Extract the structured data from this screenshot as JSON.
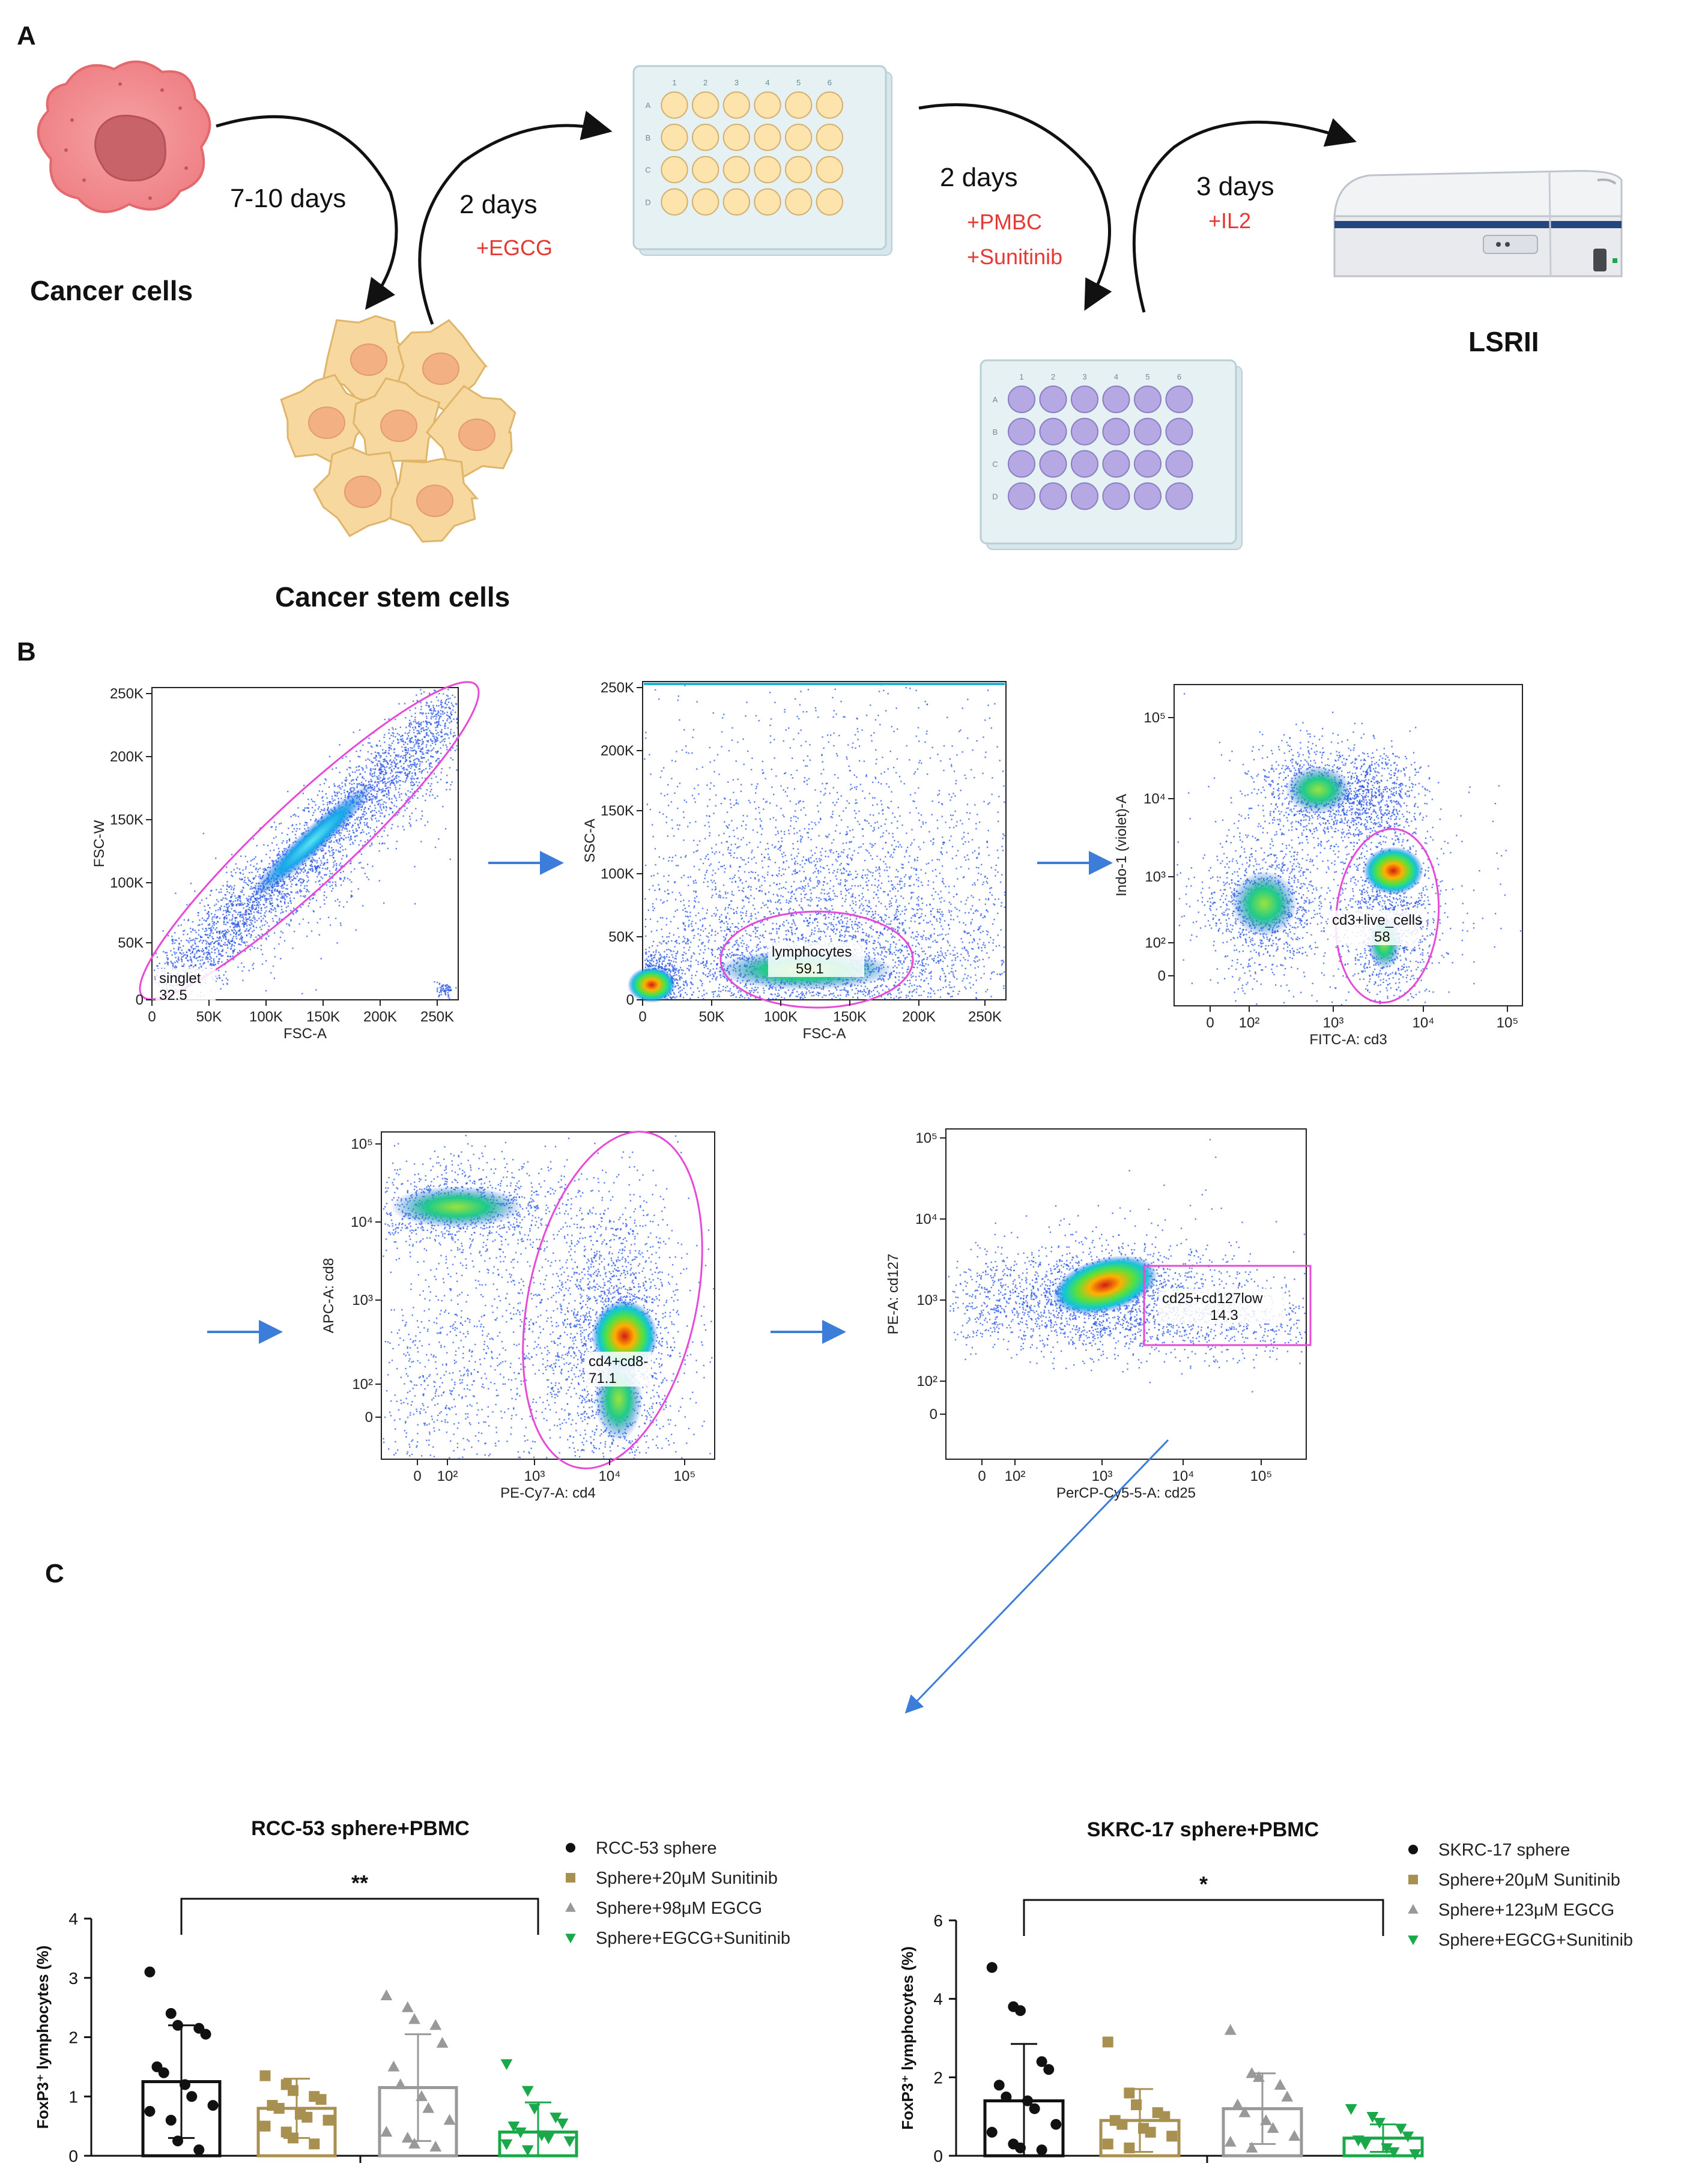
{
  "panels": {
    "a": "A",
    "b": "B",
    "c": "C"
  },
  "schematic": {
    "cancer_cells": "Cancer cells",
    "cancer_stem_cells": "Cancer stem cells",
    "instrument": "LSRII",
    "step1": {
      "duration": "7-10 days"
    },
    "step2": {
      "duration": "2 days",
      "treatment": "+EGCG"
    },
    "step3": {
      "duration": "2 days",
      "treatment1": "+PMBC",
      "treatment2": "+Sunitinib"
    },
    "step4": {
      "duration": "3 days",
      "treatment": "+IL2"
    },
    "plate_cols": [
      "1",
      "2",
      "3",
      "4",
      "5",
      "6"
    ],
    "plate_rows": [
      "A",
      "B",
      "C",
      "D"
    ],
    "colors": {
      "cancer": "#f08a8e",
      "stem": "#f7d9a0",
      "plate1_well": "#fde4ad",
      "plate2_well": "#b6a9e3",
      "red_text": "#e53935"
    }
  },
  "flow": {
    "plot1": {
      "xlabel": "FSC-A",
      "ylabel": "FSC-W",
      "xticks": [
        "0",
        "50K",
        "100K",
        "150K",
        "200K",
        "250K"
      ],
      "yticks": [
        "0",
        "50K",
        "100K",
        "150K",
        "200K",
        "250K"
      ],
      "gate_name": "singlet",
      "gate_value": "32.5"
    },
    "plot2": {
      "xlabel": "FSC-A",
      "ylabel": "SSC-A",
      "xticks": [
        "0",
        "50K",
        "100K",
        "150K",
        "200K",
        "250K"
      ],
      "yticks": [
        "0",
        "50K",
        "100K",
        "150K",
        "200K",
        "250K"
      ],
      "gate_name": "lymphocytes",
      "gate_value": "59.1"
    },
    "plot3": {
      "xlabel": "FITC-A: cd3",
      "ylabel": "Indo-1 (violet)-A",
      "xticks": [
        "0",
        "10²",
        "10³",
        "10⁴",
        "10⁵"
      ],
      "yticks": [
        "0",
        "10²",
        "10³",
        "10⁴",
        "10⁵"
      ],
      "gate_name": "cd3+live_cells",
      "gate_value": "58"
    },
    "plot4": {
      "xlabel": "PE-Cy7-A: cd4",
      "ylabel": "APC-A: cd8",
      "xticks": [
        "0",
        "10²",
        "10³",
        "10⁴",
        "10⁵"
      ],
      "yticks": [
        "0",
        "10²",
        "10³",
        "10⁴",
        "10⁵"
      ],
      "gate_name": "cd4+cd8-",
      "gate_value": "71.1"
    },
    "plot5": {
      "xlabel": "PerCP-Cy5-5-A: cd25",
      "ylabel": "PE-A: cd127",
      "xticks": [
        "0",
        "10²",
        "10³",
        "10⁴",
        "10⁵"
      ],
      "yticks": [
        "0",
        "10²",
        "10³",
        "10⁴",
        "10⁵"
      ],
      "gate_name": "cd25+cd127low",
      "gate_value": "14.3"
    }
  },
  "chart_data": [
    {
      "type": "bar",
      "title": "RCC-53 sphere+PBMC",
      "ylabel": "FoxP3⁺ lymphocytes (%)",
      "ylim": [
        0,
        4
      ],
      "yticks": [
        "0",
        "1",
        "2",
        "3",
        "4"
      ],
      "categories": [
        "RCC-53 sphere",
        "Sphere+20μM Sunitinib",
        "Sphere+98μM EGCG",
        "Sphere+EGCG+Sunitinib"
      ],
      "values": [
        1.25,
        0.8,
        1.15,
        0.4
      ],
      "errors": [
        0.95,
        0.5,
        0.9,
        0.5
      ],
      "colors": [
        "#111111",
        "#a89050",
        "#999999",
        "#1aa84a"
      ],
      "markers": [
        "circle",
        "square",
        "triangle-up",
        "triangle-down"
      ],
      "points": [
        [
          3.1,
          2.4,
          2.2,
          2.15,
          2.05,
          1.5,
          1.4,
          1.2,
          1.0,
          0.85,
          0.75,
          0.6,
          0.25,
          0.1
        ],
        [
          1.35,
          1.2,
          1.1,
          1.0,
          0.95,
          0.85,
          0.8,
          0.7,
          0.65,
          0.6,
          0.5,
          0.4,
          0.3,
          0.2
        ],
        [
          2.7,
          2.5,
          2.3,
          2.2,
          1.9,
          1.5,
          1.2,
          1.0,
          0.8,
          0.6,
          0.4,
          0.3,
          0.2,
          0.15
        ],
        [
          1.55,
          1.1,
          0.8,
          0.65,
          0.55,
          0.5,
          0.4,
          0.35,
          0.3,
          0.25,
          0.2,
          0.1
        ]
      ],
      "significance": {
        "from": 0,
        "to": 3,
        "label": "**"
      }
    },
    {
      "type": "bar",
      "title": "SKRC-17 sphere+PBMC",
      "ylabel": "FoxP3⁺ lymphocytes (%)",
      "ylim": [
        0,
        6
      ],
      "yticks": [
        "0",
        "2",
        "4",
        "6"
      ],
      "categories": [
        "SKRC-17 sphere",
        "Sphere+20μM Sunitinib",
        "Sphere+123μM EGCG",
        "Sphere+EGCG+Sunitinib"
      ],
      "values": [
        1.4,
        0.9,
        1.2,
        0.45
      ],
      "errors": [
        1.45,
        0.8,
        0.9,
        0.35
      ],
      "colors": [
        "#111111",
        "#a89050",
        "#999999",
        "#1aa84a"
      ],
      "markers": [
        "circle",
        "square",
        "triangle-up",
        "triangle-down"
      ],
      "points": [
        [
          4.8,
          3.8,
          3.7,
          2.4,
          2.2,
          1.8,
          1.5,
          1.4,
          1.2,
          0.8,
          0.6,
          0.3,
          0.2,
          0.15
        ],
        [
          2.9,
          1.6,
          1.3,
          1.1,
          1.0,
          0.9,
          0.8,
          0.7,
          0.6,
          0.5,
          0.3,
          0.2
        ],
        [
          3.2,
          2.1,
          2.0,
          1.8,
          1.5,
          1.3,
          1.1,
          0.9,
          0.7,
          0.5,
          0.35,
          0.2
        ],
        [
          1.2,
          1.0,
          0.85,
          0.7,
          0.5,
          0.4,
          0.3,
          0.2,
          0.1,
          0.05
        ]
      ],
      "significance": {
        "from": 0,
        "to": 3,
        "label": "*"
      }
    }
  ]
}
